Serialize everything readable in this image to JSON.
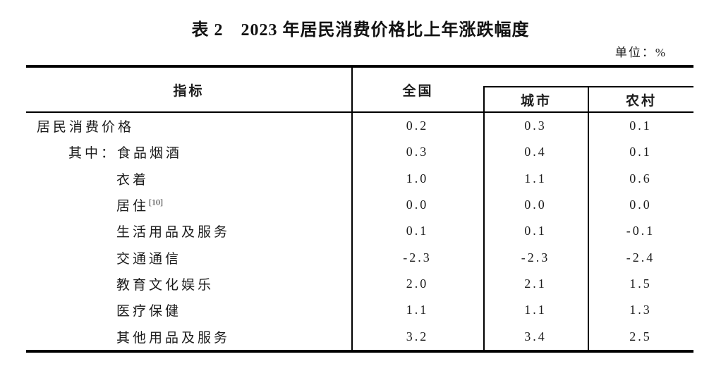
{
  "doc": {
    "title": "表 2　2023 年居民消费价格比上年涨跌幅度",
    "unit": "单位：%"
  },
  "colors": {
    "background": "#ffffff",
    "text": "#1c1c1c",
    "line": "#000000"
  },
  "table": {
    "header": {
      "indicator": "指标",
      "national": "全国",
      "urban": "城市",
      "rural": "农村"
    },
    "rows": [
      {
        "label": "居民消费价格",
        "sup": "",
        "national": "0.2",
        "urban": "0.3",
        "rural": "0.1"
      },
      {
        "label": "其中：食品烟酒",
        "sup": "",
        "national": "0.3",
        "urban": "0.4",
        "rural": "0.1"
      },
      {
        "label": "衣着",
        "sup": "",
        "national": "1.0",
        "urban": "1.1",
        "rural": "0.6"
      },
      {
        "label": "居住",
        "sup": "[10]",
        "national": "0.0",
        "urban": "0.0",
        "rural": "0.0"
      },
      {
        "label": "生活用品及服务",
        "sup": "",
        "national": "0.1",
        "urban": "0.1",
        "rural": "-0.1"
      },
      {
        "label": "交通通信",
        "sup": "",
        "national": "-2.3",
        "urban": "-2.3",
        "rural": "-2.4"
      },
      {
        "label": "教育文化娱乐",
        "sup": "",
        "national": "2.0",
        "urban": "2.1",
        "rural": "1.5"
      },
      {
        "label": "医疗保健",
        "sup": "",
        "national": "1.1",
        "urban": "1.1",
        "rural": "1.3"
      },
      {
        "label": "其他用品及服务",
        "sup": "",
        "national": "3.2",
        "urban": "3.4",
        "rural": "2.5"
      }
    ]
  }
}
